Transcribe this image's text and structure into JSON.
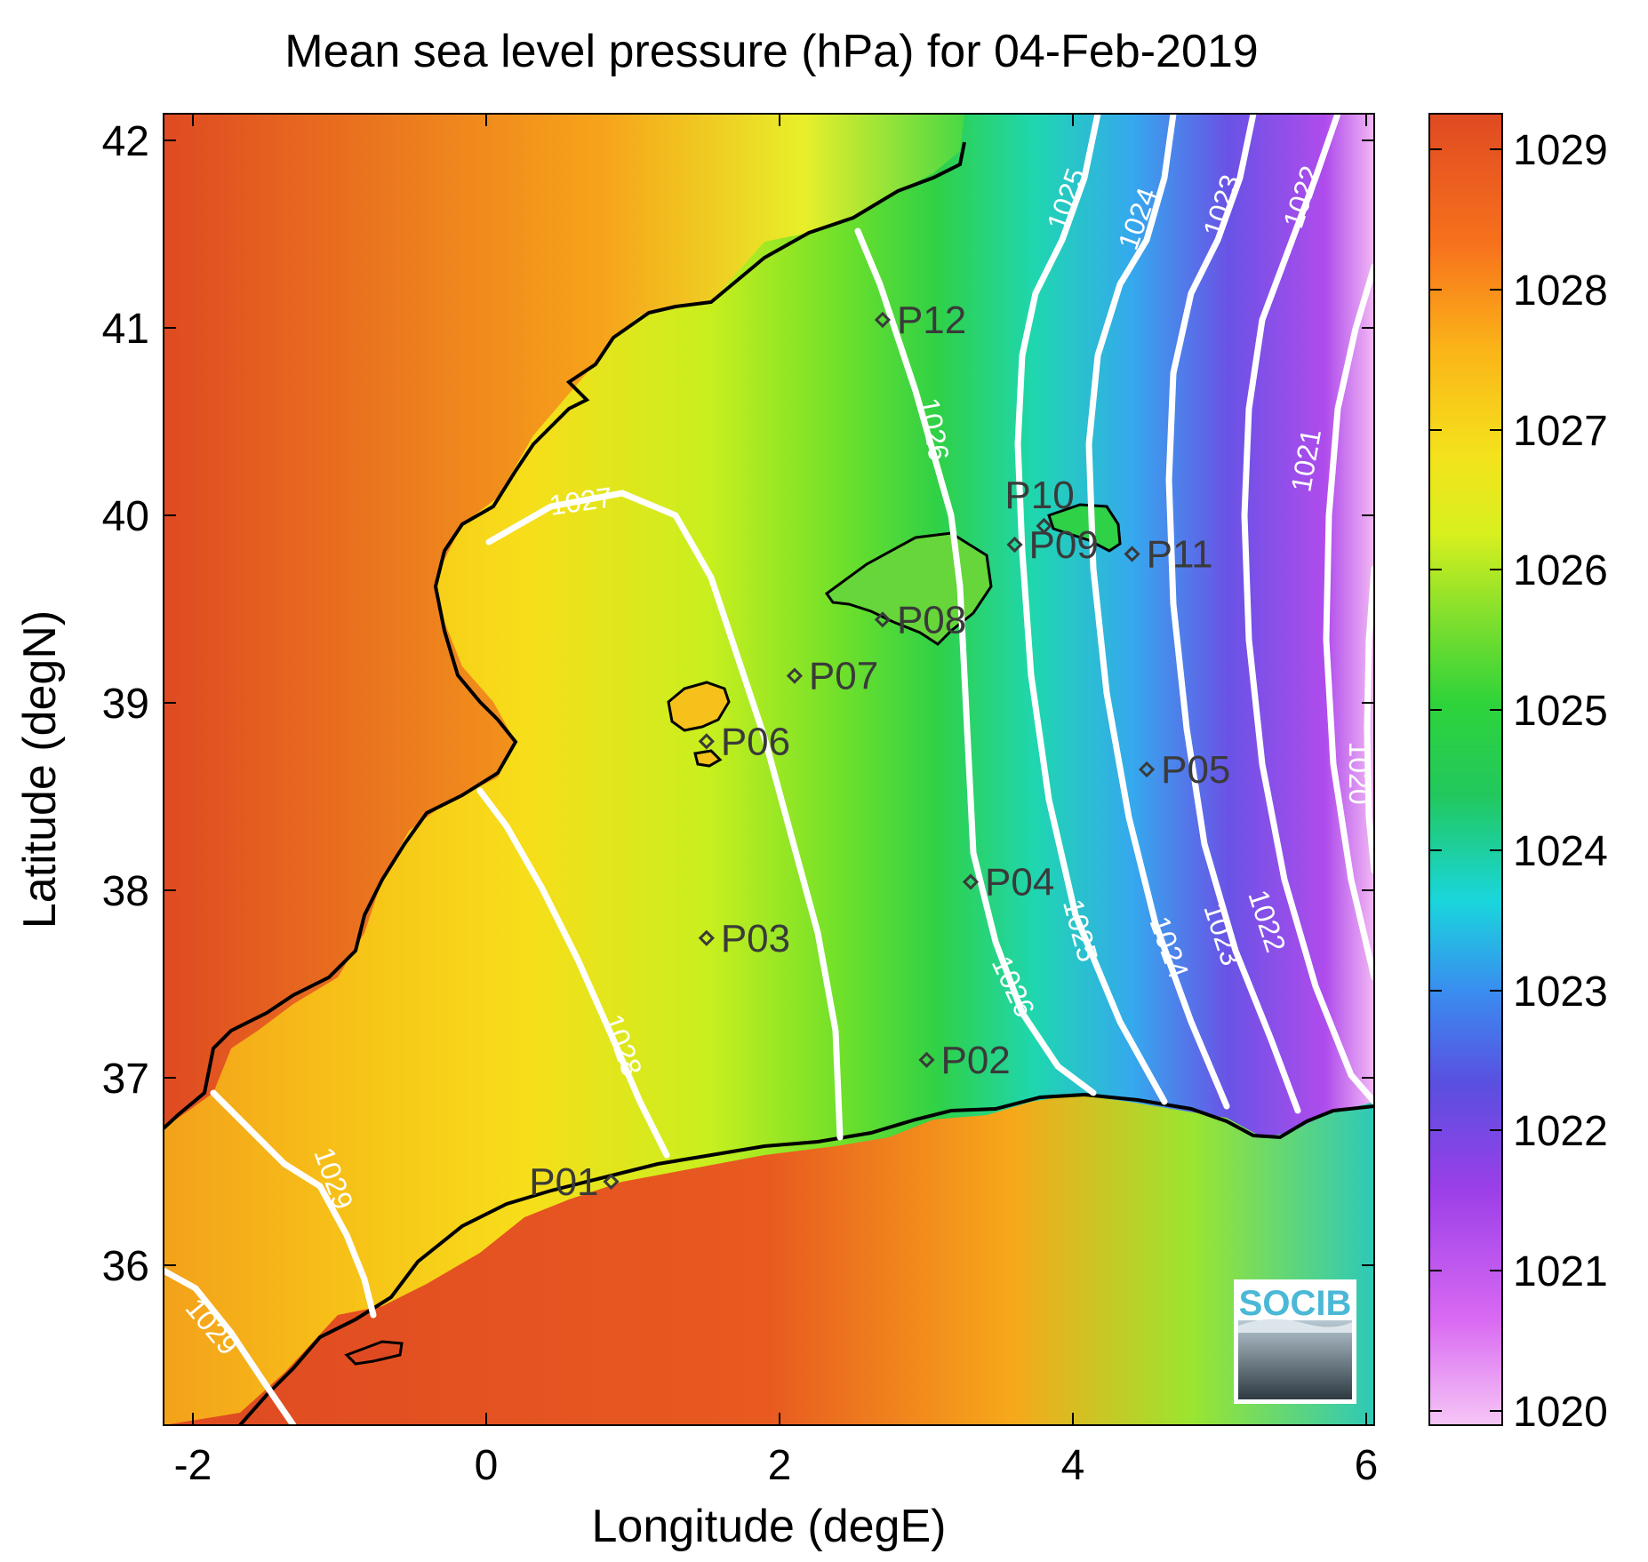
{
  "title": "Mean sea level pressure (hPa) for 04-Feb-2019",
  "xlabel": "Longitude (degE)",
  "ylabel": "Latitude (degN)",
  "x_ticks": [
    "-2",
    "0",
    "2",
    "4",
    "6"
  ],
  "y_ticks": [
    "36",
    "37",
    "38",
    "39",
    "40",
    "41",
    "42"
  ],
  "colorbar_ticks": [
    "1020",
    "1021",
    "1022",
    "1023",
    "1024",
    "1025",
    "1026",
    "1027",
    "1028",
    "1029"
  ],
  "logo_text": "SOCIB",
  "map": {
    "lon_range": [
      -2.2,
      6.05
    ],
    "lat_range": [
      35.2,
      42.2
    ],
    "color_range": [
      1019.9,
      1029.3
    ],
    "colormap": [
      "#f6c6f6",
      "#d96af2",
      "#9b3fe8",
      "#5a4fe0",
      "#3a8cf0",
      "#19d6dc",
      "#22c85e",
      "#2ed33a",
      "#86e02c",
      "#d8f01e",
      "#f4e21c",
      "#fbb418",
      "#f7721c",
      "#df4a22"
    ]
  },
  "isobars": [
    {
      "label": "1029"
    },
    {
      "label": "1028"
    },
    {
      "label": "1027"
    },
    {
      "label": "1026"
    },
    {
      "label": "1025"
    },
    {
      "label": "1024"
    },
    {
      "label": "1023"
    },
    {
      "label": "1022"
    },
    {
      "label": "1021"
    },
    {
      "label": "1020"
    }
  ],
  "stations": [
    {
      "name": "P01",
      "lon": 0.85,
      "lat": 36.5
    },
    {
      "name": "P02",
      "lon": 3.0,
      "lat": 37.15
    },
    {
      "name": "P03",
      "lon": 1.5,
      "lat": 37.8
    },
    {
      "name": "P04",
      "lon": 3.3,
      "lat": 38.1
    },
    {
      "name": "P05",
      "lon": 4.5,
      "lat": 38.7
    },
    {
      "name": "P06",
      "lon": 1.5,
      "lat": 38.85
    },
    {
      "name": "P07",
      "lon": 2.1,
      "lat": 39.2
    },
    {
      "name": "P08",
      "lon": 2.7,
      "lat": 39.5
    },
    {
      "name": "P09",
      "lon": 3.6,
      "lat": 39.9
    },
    {
      "name": "P10",
      "lon": 3.8,
      "lat": 40.0
    },
    {
      "name": "P11",
      "lon": 4.4,
      "lat": 39.85
    },
    {
      "name": "P12",
      "lon": 2.7,
      "lat": 41.1
    }
  ]
}
